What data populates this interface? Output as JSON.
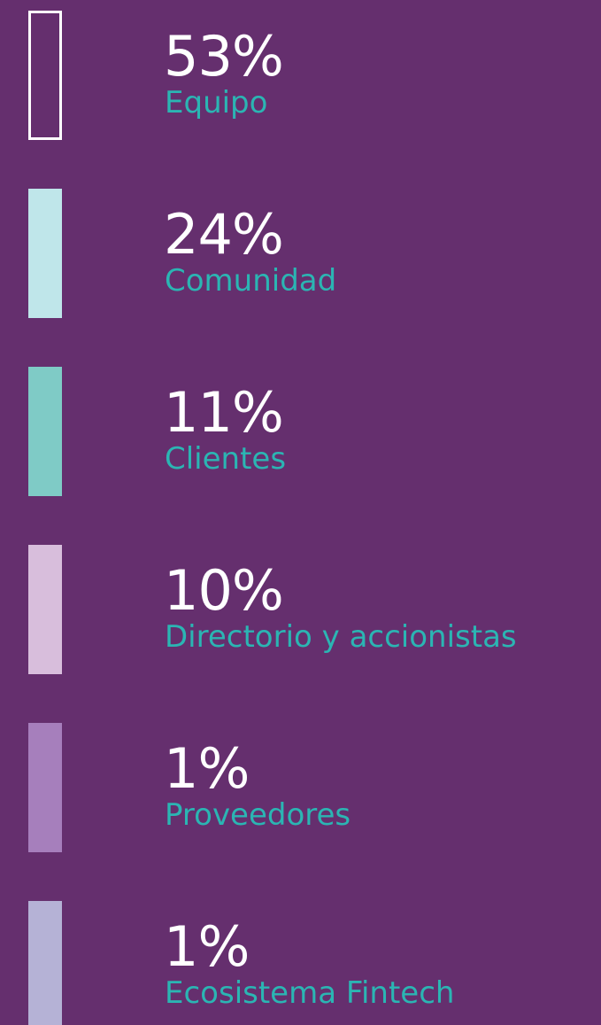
{
  "legend": {
    "items": [
      {
        "percent": "53%",
        "label": "Equipo",
        "color": "#ffffff",
        "outline": true
      },
      {
        "percent": "24%",
        "label": "Comunidad",
        "color": "#bfe6ea",
        "outline": false
      },
      {
        "percent": "11%",
        "label": "Clientes",
        "color": "#7fcbc6",
        "outline": false
      },
      {
        "percent": "10%",
        "label": "Directorio y accionistas",
        "color": "#d8bedc",
        "outline": false
      },
      {
        "percent": "1%",
        "label": "Proveedores",
        "color": "#a67fbc",
        "outline": false
      },
      {
        "percent": "1%",
        "label": "Ecosistema Fintech",
        "color": "#b5b2d6",
        "outline": false
      }
    ]
  }
}
